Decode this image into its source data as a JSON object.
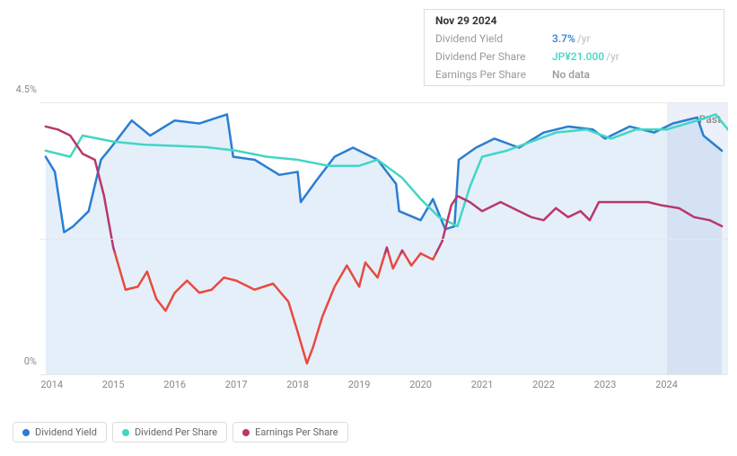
{
  "tooltip": {
    "date": "Nov 29 2024",
    "rows": [
      {
        "label": "Dividend Yield",
        "value": "3.7%",
        "suffix": "/yr",
        "color": "#2a7ed2"
      },
      {
        "label": "Dividend Per Share",
        "value": "JP¥21.000",
        "suffix": "/yr",
        "color": "#42d6c4"
      },
      {
        "label": "Earnings Per Share",
        "value": "No data",
        "suffix": "",
        "color": "#999999"
      }
    ]
  },
  "chart": {
    "type": "line",
    "background_color": "#ffffff",
    "grid_color": "#e8e8e8",
    "axis_font_color": "#888888",
    "axis_font_size": 11,
    "past_label": "Past",
    "past_label_color": "#888888",
    "xlim": [
      2013.8,
      2025.0
    ],
    "ylim": [
      0,
      4.5
    ],
    "yticks": [
      {
        "v": 0,
        "label": "0%"
      },
      {
        "v": 2.25,
        "label": ""
      },
      {
        "v": 4.5,
        "label": "4.5%"
      }
    ],
    "xticks": [
      2014,
      2015,
      2016,
      2017,
      2018,
      2019,
      2020,
      2021,
      2022,
      2023,
      2024
    ],
    "highlight_band": {
      "from": 2024.0,
      "to": 2025.0
    },
    "series": [
      {
        "id": "dividend_yield",
        "name": "Dividend Yield",
        "color": "#2a7ed2",
        "fill": "rgba(42,126,210,0.12)",
        "stroke_width": 2.5,
        "points": [
          [
            2013.9,
            3.6
          ],
          [
            2014.05,
            3.35
          ],
          [
            2014.2,
            2.35
          ],
          [
            2014.35,
            2.45
          ],
          [
            2014.6,
            2.7
          ],
          [
            2014.8,
            3.55
          ],
          [
            2015.0,
            3.8
          ],
          [
            2015.3,
            4.2
          ],
          [
            2015.6,
            3.95
          ],
          [
            2016.0,
            4.2
          ],
          [
            2016.4,
            4.15
          ],
          [
            2016.85,
            4.3
          ],
          [
            2016.95,
            3.6
          ],
          [
            2017.3,
            3.55
          ],
          [
            2017.7,
            3.3
          ],
          [
            2018.0,
            3.35
          ],
          [
            2018.05,
            2.85
          ],
          [
            2018.3,
            3.2
          ],
          [
            2018.6,
            3.6
          ],
          [
            2018.9,
            3.75
          ],
          [
            2019.3,
            3.55
          ],
          [
            2019.6,
            3.15
          ],
          [
            2019.65,
            2.7
          ],
          [
            2020.0,
            2.55
          ],
          [
            2020.2,
            2.9
          ],
          [
            2020.4,
            2.4
          ],
          [
            2020.55,
            2.45
          ],
          [
            2020.62,
            3.55
          ],
          [
            2020.9,
            3.75
          ],
          [
            2021.2,
            3.9
          ],
          [
            2021.6,
            3.75
          ],
          [
            2022.0,
            4.0
          ],
          [
            2022.4,
            4.1
          ],
          [
            2022.8,
            4.05
          ],
          [
            2023.0,
            3.9
          ],
          [
            2023.4,
            4.1
          ],
          [
            2023.8,
            4.0
          ],
          [
            2024.1,
            4.15
          ],
          [
            2024.5,
            4.25
          ],
          [
            2024.6,
            3.95
          ],
          [
            2024.9,
            3.7
          ]
        ]
      },
      {
        "id": "dividend_per_share",
        "name": "Dividend Per Share",
        "color": "#42d6c4",
        "fill": null,
        "stroke_width": 2.5,
        "points": [
          [
            2013.9,
            3.7
          ],
          [
            2014.3,
            3.6
          ],
          [
            2014.5,
            3.95
          ],
          [
            2015.0,
            3.85
          ],
          [
            2015.5,
            3.8
          ],
          [
            2016.0,
            3.78
          ],
          [
            2016.5,
            3.76
          ],
          [
            2017.0,
            3.7
          ],
          [
            2017.5,
            3.6
          ],
          [
            2018.0,
            3.55
          ],
          [
            2018.5,
            3.45
          ],
          [
            2019.0,
            3.45
          ],
          [
            2019.3,
            3.55
          ],
          [
            2019.7,
            3.25
          ],
          [
            2020.0,
            2.9
          ],
          [
            2020.3,
            2.6
          ],
          [
            2020.6,
            2.45
          ],
          [
            2020.8,
            3.1
          ],
          [
            2021.0,
            3.6
          ],
          [
            2021.4,
            3.7
          ],
          [
            2021.8,
            3.85
          ],
          [
            2022.2,
            4.0
          ],
          [
            2022.7,
            4.05
          ],
          [
            2023.1,
            3.9
          ],
          [
            2023.5,
            4.05
          ],
          [
            2024.0,
            4.05
          ],
          [
            2024.5,
            4.2
          ],
          [
            2024.8,
            4.3
          ],
          [
            2025.0,
            4.05
          ]
        ]
      },
      {
        "id": "earnings_per_share",
        "name": "Earnings Per Share",
        "color_main": "#b9386b",
        "color_low": "#e84a3d",
        "fill": null,
        "stroke_width": 2.5,
        "threshold": 2.0,
        "points": [
          [
            2013.9,
            4.1
          ],
          [
            2014.1,
            4.05
          ],
          [
            2014.3,
            3.95
          ],
          [
            2014.5,
            3.65
          ],
          [
            2014.7,
            3.55
          ],
          [
            2014.85,
            2.95
          ],
          [
            2015.0,
            2.1
          ],
          [
            2015.2,
            1.4
          ],
          [
            2015.4,
            1.45
          ],
          [
            2015.55,
            1.7
          ],
          [
            2015.7,
            1.25
          ],
          [
            2015.85,
            1.05
          ],
          [
            2016.0,
            1.35
          ],
          [
            2016.2,
            1.55
          ],
          [
            2016.4,
            1.35
          ],
          [
            2016.6,
            1.4
          ],
          [
            2016.8,
            1.6
          ],
          [
            2017.0,
            1.55
          ],
          [
            2017.3,
            1.4
          ],
          [
            2017.6,
            1.5
          ],
          [
            2017.85,
            1.2
          ],
          [
            2018.0,
            0.7
          ],
          [
            2018.15,
            0.18
          ],
          [
            2018.25,
            0.45
          ],
          [
            2018.4,
            0.95
          ],
          [
            2018.6,
            1.45
          ],
          [
            2018.8,
            1.8
          ],
          [
            2019.0,
            1.45
          ],
          [
            2019.1,
            1.85
          ],
          [
            2019.3,
            1.6
          ],
          [
            2019.45,
            2.1
          ],
          [
            2019.55,
            1.75
          ],
          [
            2019.7,
            2.05
          ],
          [
            2019.85,
            1.8
          ],
          [
            2020.0,
            2.0
          ],
          [
            2020.2,
            1.9
          ],
          [
            2020.35,
            2.2
          ],
          [
            2020.5,
            2.8
          ],
          [
            2020.6,
            2.95
          ],
          [
            2020.8,
            2.85
          ],
          [
            2021.0,
            2.7
          ],
          [
            2021.3,
            2.85
          ],
          [
            2021.6,
            2.7
          ],
          [
            2021.8,
            2.6
          ],
          [
            2022.0,
            2.55
          ],
          [
            2022.2,
            2.75
          ],
          [
            2022.4,
            2.6
          ],
          [
            2022.6,
            2.7
          ],
          [
            2022.75,
            2.55
          ],
          [
            2022.9,
            2.85
          ],
          [
            2023.1,
            2.85
          ],
          [
            2023.4,
            2.85
          ],
          [
            2023.7,
            2.85
          ],
          [
            2023.9,
            2.8
          ],
          [
            2024.2,
            2.75
          ],
          [
            2024.45,
            2.6
          ],
          [
            2024.7,
            2.55
          ],
          [
            2024.9,
            2.45
          ]
        ]
      }
    ]
  },
  "legend": {
    "items": [
      {
        "label": "Dividend Yield",
        "color": "#2a7ed2"
      },
      {
        "label": "Dividend Per Share",
        "color": "#42d6c4"
      },
      {
        "label": "Earnings Per Share",
        "color": "#b9386b"
      }
    ]
  }
}
